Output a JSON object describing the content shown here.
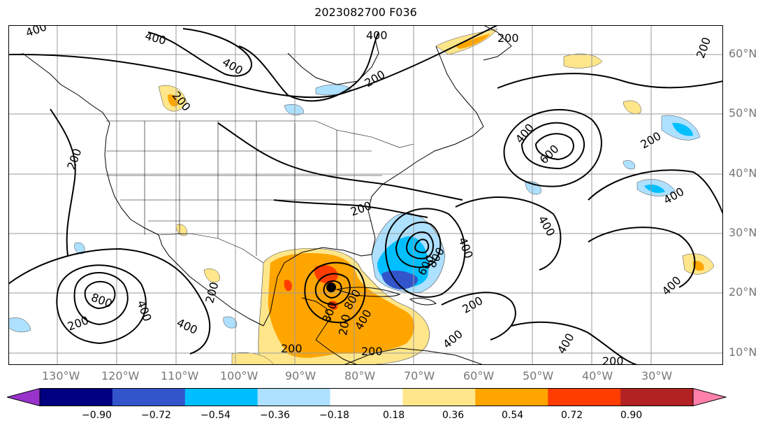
{
  "title": "2023082700 F036",
  "lat_labels": [
    "60°N",
    "50°N",
    "40°N",
    "30°N",
    "20°N",
    "10°N"
  ],
  "lon_labels": [
    "130°W",
    "120°W",
    "110°W",
    "100°W",
    "90°W",
    "80°W",
    "70°W",
    "60°W",
    "50°W",
    "40°W",
    "30°W"
  ],
  "colorbar": {
    "colors": [
      "#9a33cc",
      "#000080",
      "#3355cc",
      "#00bfff",
      "#aee0ff",
      "#ffffff",
      "#ffe68a",
      "#ffa500",
      "#ff3d00",
      "#b22222",
      "#ff80aa"
    ],
    "tick_labels": [
      "−0.90",
      "−0.72",
      "−0.54",
      "−0.36",
      "−0.18",
      "0.18",
      "0.36",
      "0.54",
      "0.72",
      "0.90"
    ]
  },
  "contour_labels": [
    {
      "text": "400"
    },
    {
      "text": "400"
    },
    {
      "text": "400"
    },
    {
      "text": "200"
    },
    {
      "text": "200"
    },
    {
      "text": "200"
    },
    {
      "text": "400"
    },
    {
      "text": "200"
    },
    {
      "text": "200"
    },
    {
      "text": "400"
    },
    {
      "text": "600"
    },
    {
      "text": "200"
    },
    {
      "text": "400"
    },
    {
      "text": "200"
    },
    {
      "text": "400"
    },
    {
      "text": "600"
    },
    {
      "text": "800"
    },
    {
      "text": "400"
    },
    {
      "text": "800"
    },
    {
      "text": "400"
    },
    {
      "text": "200"
    },
    {
      "text": "400"
    },
    {
      "text": "200"
    },
    {
      "text": "200"
    },
    {
      "text": "200"
    },
    {
      "text": "400"
    },
    {
      "text": "200"
    },
    {
      "text": "400"
    },
    {
      "text": "200"
    },
    {
      "text": "200"
    },
    {
      "text": "400"
    },
    {
      "text": "400"
    },
    {
      "text": "800"
    },
    {
      "text": "800"
    }
  ]
}
